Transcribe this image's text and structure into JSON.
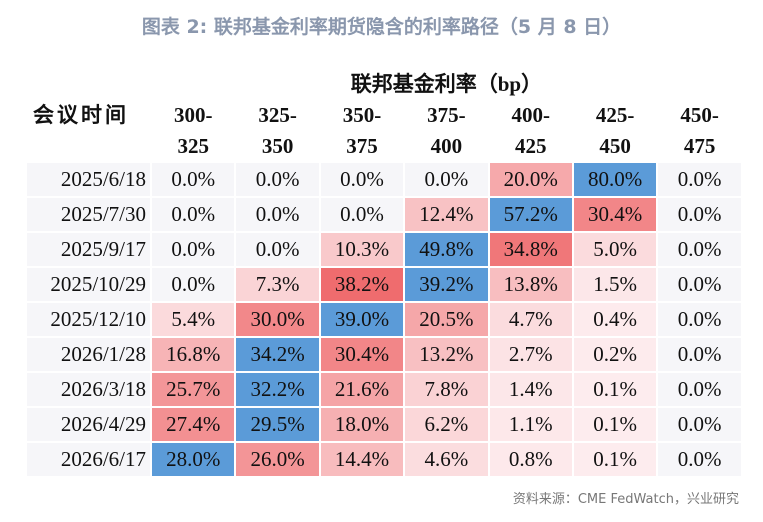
{
  "header": {
    "title": "图表 2:  联邦基金利率期货隐含的利率路径（5 月 8 日）"
  },
  "table": {
    "group_header": "联邦基金利率（bp）",
    "row_header": "会议时间",
    "columns": [
      {
        "top": "300-",
        "bottom": "325"
      },
      {
        "top": "325-",
        "bottom": "350"
      },
      {
        "top": "350-",
        "bottom": "375"
      },
      {
        "top": "375-",
        "bottom": "400"
      },
      {
        "top": "400-",
        "bottom": "425"
      },
      {
        "top": "425-",
        "bottom": "450"
      },
      {
        "top": "450-",
        "bottom": "475"
      }
    ],
    "rows": [
      [
        "2025/6/18",
        "0.0%",
        "0.0%",
        "0.0%",
        "0.0%",
        "20.0%",
        "80.0%",
        "0.0%"
      ],
      [
        "2025/7/30",
        "0.0%",
        "0.0%",
        "0.0%",
        "12.4%",
        "57.2%",
        "30.4%",
        "0.0%"
      ],
      [
        "2025/9/17",
        "0.0%",
        "0.0%",
        "10.3%",
        "49.8%",
        "34.8%",
        "5.0%",
        "0.0%"
      ],
      [
        "2025/10/29",
        "0.0%",
        "7.3%",
        "38.2%",
        "39.2%",
        "13.8%",
        "1.5%",
        "0.0%"
      ],
      [
        "2025/12/10",
        "5.4%",
        "30.0%",
        "39.0%",
        "20.5%",
        "4.7%",
        "0.4%",
        "0.0%"
      ],
      [
        "2026/1/28",
        "16.8%",
        "34.2%",
        "30.4%",
        "13.2%",
        "2.7%",
        "0.2%",
        "0.0%"
      ],
      [
        "2026/3/18",
        "25.7%",
        "32.2%",
        "21.6%",
        "7.8%",
        "1.4%",
        "0.1%",
        "0.0%"
      ],
      [
        "2026/4/29",
        "27.4%",
        "29.5%",
        "18.0%",
        "6.2%",
        "1.1%",
        "0.1%",
        "0.0%"
      ],
      [
        "2026/6/17",
        "28.0%",
        "26.0%",
        "14.4%",
        "4.6%",
        "0.8%",
        "0.1%",
        "0.0%"
      ]
    ]
  },
  "footer": {
    "source": "资料来源：CME FedWatch，兴业研究"
  }
}
